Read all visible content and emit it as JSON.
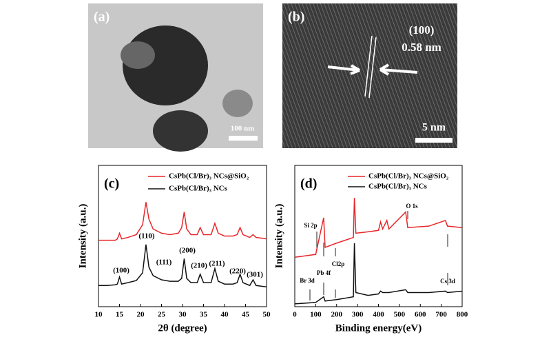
{
  "panels": {
    "a": {
      "label": "(a)",
      "scale": "100 nm"
    },
    "b": {
      "label": "(b)",
      "plane": "(100)",
      "spacing": "0.58 nm",
      "scale": "5 nm"
    }
  },
  "chart_data": [
    {
      "type": "line",
      "label": "(c)",
      "xlabel": "2θ (degree)",
      "ylabel": "Intensity (a.u.)",
      "x": [
        10,
        12,
        14,
        14.5,
        15,
        15.5,
        17,
        19,
        20.5,
        21.3,
        22,
        23,
        25,
        27,
        29,
        29.8,
        30.4,
        31,
        32,
        33.5,
        34.2,
        35,
        36.8,
        37.7,
        38.5,
        40,
        42,
        43,
        43.7,
        44.4,
        46,
        46.8,
        47.5,
        50
      ],
      "xlim": [
        10,
        50
      ],
      "xticks": [
        10,
        15,
        20,
        25,
        30,
        35,
        40,
        45,
        50
      ],
      "ylim": [
        0,
        100
      ],
      "series": [
        {
          "name": "CsPb(Cl/Br)₃ NCs@SiO₂",
          "color": "#e8262a",
          "values": [
            47,
            47,
            47,
            48,
            52,
            48,
            49,
            51,
            58,
            74,
            62,
            55,
            52,
            51,
            52,
            56,
            67,
            55,
            51,
            51,
            56,
            51,
            51,
            59,
            52,
            50,
            50,
            51,
            56,
            51,
            49,
            51,
            49,
            48
          ]
        },
        {
          "name": "CsPb(Cl/Br)₃ NCs",
          "color": "#111111",
          "values": [
            15,
            15,
            15.5,
            16,
            21,
            16,
            17,
            18.5,
            24,
            44,
            28,
            22,
            19,
            18,
            18,
            20,
            34,
            20,
            17,
            17,
            23,
            17,
            17,
            27,
            18,
            16,
            16,
            17,
            23,
            17,
            15,
            19,
            15,
            14
          ]
        }
      ],
      "annotations": [
        "(100)",
        "(110)",
        "(111)",
        "(200)",
        "(210)",
        "(211)",
        "(220)",
        "(301)"
      ]
    },
    {
      "type": "line",
      "label": "(d)",
      "xlabel": "Binding energy(eV)",
      "ylabel": "Intensity (a.u.)",
      "x": [
        0,
        50,
        100,
        138,
        145,
        200,
        280,
        285,
        292,
        350,
        400,
        410,
        420,
        440,
        450,
        530,
        540,
        640,
        720,
        730,
        800
      ],
      "xlim": [
        0,
        800
      ],
      "xticks": [
        0,
        100,
        200,
        300,
        400,
        500,
        600,
        700,
        800
      ],
      "ylim": [
        0,
        100
      ],
      "series": [
        {
          "name": "CsPb(Cl/Br)₃ NCs@SiO₂",
          "color": "#e8262a",
          "values": [
            35,
            36,
            37,
            63,
            42,
            45,
            49,
            77,
            52,
            53,
            54,
            60,
            55,
            61,
            55,
            67,
            56,
            57,
            61,
            57,
            56
          ]
        },
        {
          "name": "CsPb(Cl/Br)₃ NCs",
          "color": "#111111",
          "values": [
            2,
            2.5,
            3,
            7,
            4,
            5,
            7,
            45,
            10,
            8,
            9,
            11,
            10,
            10,
            10,
            12,
            10,
            10,
            11,
            10,
            11
          ]
        }
      ],
      "annotations": [
        "Si 2p",
        "Pb 4f",
        "Cl2p",
        "Br 3d",
        "O 1s",
        "Cs 3d"
      ]
    }
  ]
}
